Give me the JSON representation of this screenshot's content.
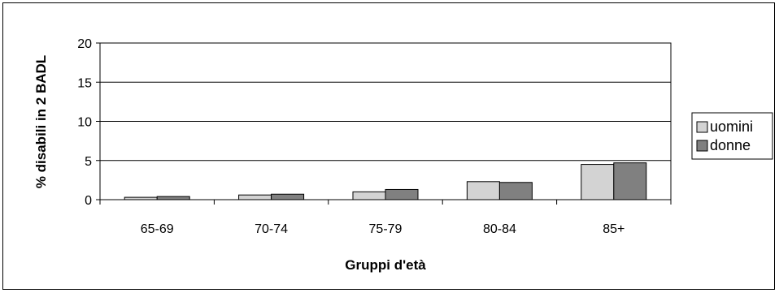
{
  "chart_data": {
    "type": "bar",
    "categories": [
      "65-69",
      "70-74",
      "75-79",
      "80-84",
      "85+"
    ],
    "series": [
      {
        "name": "uomini",
        "values": [
          0.3,
          0.6,
          1.0,
          2.3,
          4.5
        ],
        "color": "#d3d3d3"
      },
      {
        "name": "donne",
        "values": [
          0.4,
          0.7,
          1.3,
          2.2,
          4.7
        ],
        "color": "#808080"
      }
    ],
    "title": "",
    "xlabel": "Gruppi d'età",
    "ylabel": "% disabili in 2 BADL",
    "ylim": [
      0,
      20
    ],
    "yticks": [
      "0",
      "5",
      "10",
      "15",
      "20"
    ],
    "grid": true,
    "legend_position": "right"
  }
}
